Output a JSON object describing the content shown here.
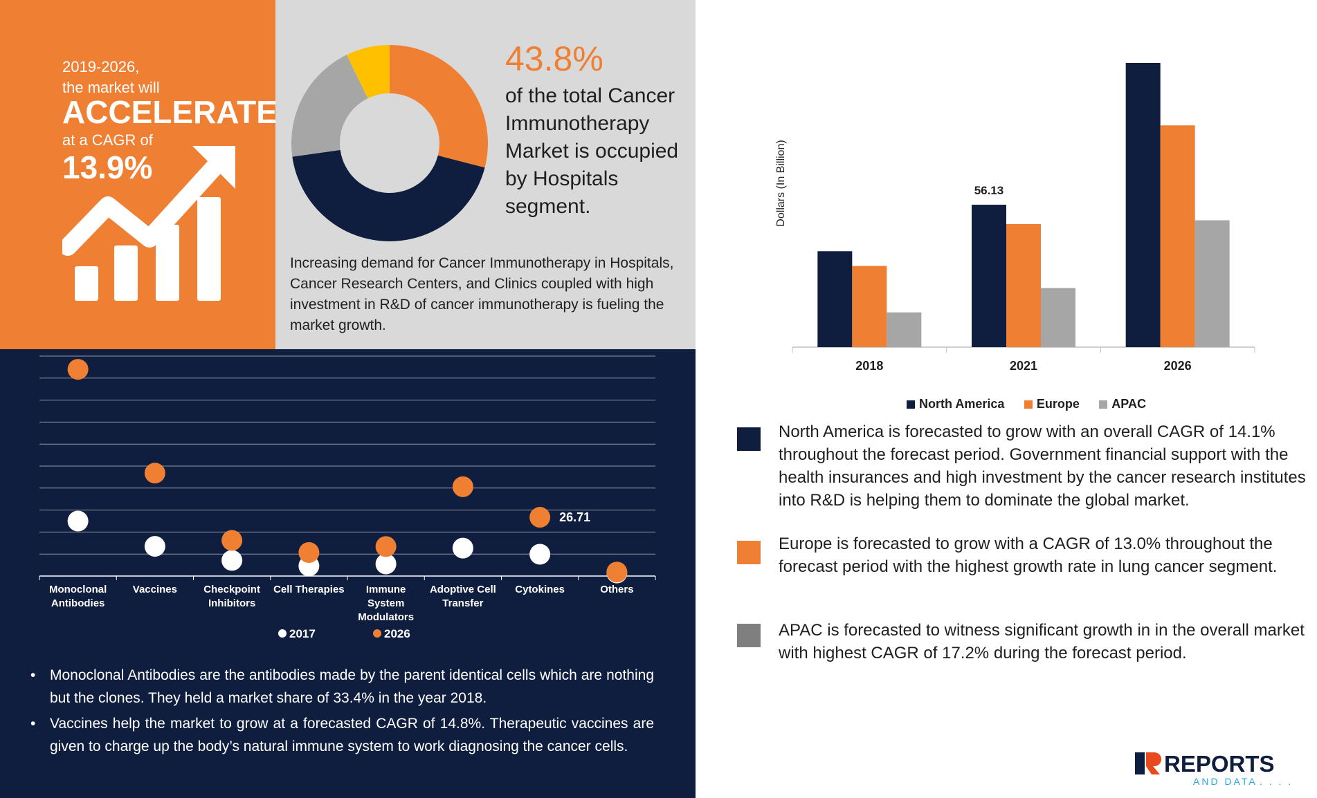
{
  "headline": {
    "period": "2019-2026,",
    "line2": "the market will",
    "accelerate": "ACCELERATE",
    "line4": "at a CAGR of",
    "cagr": "13.9%"
  },
  "hospital_share": {
    "percent": "43.8%",
    "text": "of the total Cancer Immunotherapy Market is occupied by Hospitals segment.",
    "demand": "Increasing demand for Cancer Immunotherapy in Hospitals, Cancer Research Centers, and Clinics coupled with high investment in R&D of cancer immunotherapy is fueling the market growth."
  },
  "segment_notes": [
    "Monoclonal Antibodies are the antibodies made by the parent identical cells which are nothing but the clones. They held a market share of 33.4% in the year 2018.",
    "Vaccines help the market to grow at a forecasted CAGR of 14.8%. Therapeutic vaccines are given to charge up the body’s natural immune system to work diagnosing the cancer cells."
  ],
  "regional_notes": [
    {
      "text": "North America is forecasted to grow with an overall CAGR of 14.1% throughout the forecast period. Government financial support with the health insurances and high investment by the cancer research institutes into R&D is helping them to dominate the global market.",
      "color": "#0f1e3e"
    },
    {
      "text": "Europe is forecasted to grow with a CAGR of 13.0% throughout the forecast period with the highest growth rate in lung cancer segment.",
      "color": "#ef7f33"
    },
    {
      "text": "APAC is forecasted to witness significant growth in in the overall market with highest CAGR of 17.2% during the forecast period.",
      "color": "#7f7f7f"
    }
  ],
  "logo": {
    "brand": "REPORTS",
    "tagline": "AND DATA"
  },
  "colors": {
    "orange": "#ef7f33",
    "navy": "#0f1e3e",
    "grey": "#a6a6a6",
    "light_grey": "#d9d9d9",
    "yellow": "#ffc000"
  },
  "chart_data": [
    {
      "type": "pie",
      "variant": "donut",
      "slices": [
        {
          "value": 29,
          "color": "#ef7f33"
        },
        {
          "value": 43.8,
          "color": "#0f1e3e"
        },
        {
          "value": 20,
          "color": "#a6a6a6"
        },
        {
          "value": 7.2,
          "color": "#ffc000"
        }
      ]
    },
    {
      "type": "scatter",
      "categories": [
        "Monoclonal Antibodies",
        "Vaccines",
        "Checkpoint Inhibitors",
        "Cell Therapies",
        "Immune System Modulators",
        "Adoptive Cell Transfer",
        "Cytokines",
        "Others"
      ],
      "category_lines": [
        [
          "Monoclonal",
          "Antibodies"
        ],
        [
          "Vaccines"
        ],
        [
          "Checkpoint",
          "Inhibitors"
        ],
        [
          "Cell Therapies"
        ],
        [
          "Immune",
          "System",
          "Modulators"
        ],
        [
          "Adoptive Cell",
          "Transfer"
        ],
        [
          "Cytokines"
        ],
        [
          "Others"
        ]
      ],
      "series": [
        {
          "name": "2017",
          "color": "#ffffff",
          "values": [
            25,
            13.5,
            7.1,
            4.6,
            5.5,
            12.7,
            9.9,
            1.4
          ]
        },
        {
          "name": "2026",
          "color": "#ef7f33",
          "values": [
            94,
            46.8,
            16.2,
            10.7,
            13.4,
            40.6,
            26.71,
            1.8
          ]
        }
      ],
      "annotations": [
        {
          "category": "Cytokines",
          "series": "2026",
          "text": "26.71"
        }
      ],
      "ylim": [
        0,
        100
      ],
      "grid": true,
      "legend": "bottom"
    },
    {
      "type": "bar",
      "categories": [
        "2018",
        "2021",
        "2026"
      ],
      "ylabel": "Dollars (In Billion)",
      "series": [
        {
          "name": "North America",
          "color": "#0f1e3e",
          "values": [
            37.8,
            56.13,
            112
          ]
        },
        {
          "name": "Europe",
          "color": "#ef7f33",
          "values": [
            32,
            48.5,
            87.4
          ]
        },
        {
          "name": "APAC",
          "color": "#a6a6a6",
          "values": [
            13.7,
            23.3,
            50
          ]
        }
      ],
      "annotations": [
        {
          "category": "2021",
          "series": "North America",
          "text": "56.13"
        }
      ],
      "ylim": [
        0,
        115
      ],
      "grid": false,
      "legend": "bottom"
    }
  ]
}
